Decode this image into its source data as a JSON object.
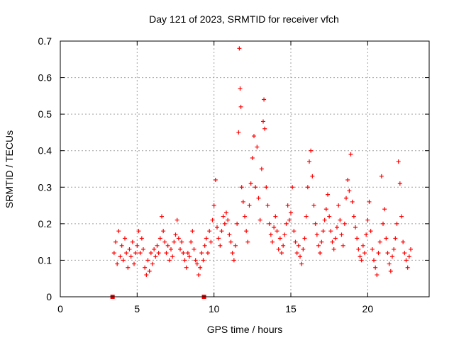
{
  "chart_data": {
    "type": "scatter",
    "title": "Day 121 of 2023, SRMTID for receiver vfch",
    "xlabel": "GPS time / hours",
    "ylabel": "SRMTID / TECUs",
    "xlim": [
      0,
      24
    ],
    "ylim": [
      0,
      0.7
    ],
    "x_ticks": [
      0,
      5,
      10,
      15,
      20
    ],
    "x_tick_labels": [
      "0",
      "5",
      "10",
      "15",
      "20"
    ],
    "y_ticks": [
      0,
      0.1,
      0.2,
      0.3,
      0.4,
      0.5,
      0.6,
      0.7
    ],
    "y_tick_labels": [
      "0",
      "0.1",
      "0.2",
      "0.3",
      "0.4",
      "0.5",
      "0.6",
      "0.7"
    ],
    "grid": true,
    "marker": "plus",
    "color": "#ff0000",
    "series": [
      {
        "name": "SRMTID",
        "points": [
          [
            3.5,
            0.12
          ],
          [
            3.6,
            0.15
          ],
          [
            3.7,
            0.09
          ],
          [
            3.8,
            0.18
          ],
          [
            3.9,
            0.11
          ],
          [
            4.0,
            0.14
          ],
          [
            4.1,
            0.1
          ],
          [
            4.2,
            0.16
          ],
          [
            4.3,
            0.12
          ],
          [
            4.4,
            0.08
          ],
          [
            4.5,
            0.13
          ],
          [
            4.6,
            0.11
          ],
          [
            4.7,
            0.15
          ],
          [
            4.8,
            0.09
          ],
          [
            4.9,
            0.12
          ],
          [
            5.0,
            0.14
          ],
          [
            5.1,
            0.18
          ],
          [
            5.2,
            0.12
          ],
          [
            5.3,
            0.16
          ],
          [
            5.4,
            0.13
          ],
          [
            5.5,
            0.08
          ],
          [
            5.6,
            0.06
          ],
          [
            5.7,
            0.1
          ],
          [
            5.8,
            0.07
          ],
          [
            5.9,
            0.12
          ],
          [
            6.0,
            0.09
          ],
          [
            6.1,
            0.13
          ],
          [
            6.2,
            0.11
          ],
          [
            6.3,
            0.14
          ],
          [
            6.4,
            0.12
          ],
          [
            6.5,
            0.16
          ],
          [
            6.6,
            0.22
          ],
          [
            6.7,
            0.18
          ],
          [
            6.8,
            0.15
          ],
          [
            6.9,
            0.12
          ],
          [
            7.0,
            0.14
          ],
          [
            7.1,
            0.1
          ],
          [
            7.2,
            0.13
          ],
          [
            7.3,
            0.11
          ],
          [
            7.4,
            0.15
          ],
          [
            7.5,
            0.17
          ],
          [
            7.6,
            0.21
          ],
          [
            7.7,
            0.16
          ],
          [
            7.8,
            0.13
          ],
          [
            7.9,
            0.15
          ],
          [
            8.0,
            0.12
          ],
          [
            8.1,
            0.1
          ],
          [
            8.2,
            0.08
          ],
          [
            8.3,
            0.12
          ],
          [
            8.4,
            0.11
          ],
          [
            8.5,
            0.15
          ],
          [
            8.6,
            0.18
          ],
          [
            8.7,
            0.13
          ],
          [
            8.8,
            0.1
          ],
          [
            8.9,
            0.09
          ],
          [
            9.0,
            0.06
          ],
          [
            9.1,
            0.08
          ],
          [
            9.2,
            0.12
          ],
          [
            9.3,
            0.1
          ],
          [
            9.4,
            0.14
          ],
          [
            9.5,
            0.16
          ],
          [
            9.6,
            0.12
          ],
          [
            9.7,
            0.18
          ],
          [
            9.8,
            0.15
          ],
          [
            9.9,
            0.21
          ],
          [
            10.0,
            0.25
          ],
          [
            10.1,
            0.32
          ],
          [
            10.2,
            0.19
          ],
          [
            10.3,
            0.16
          ],
          [
            10.4,
            0.14
          ],
          [
            10.5,
            0.18
          ],
          [
            10.6,
            0.22
          ],
          [
            10.7,
            0.2
          ],
          [
            10.8,
            0.23
          ],
          [
            10.9,
            0.21
          ],
          [
            11.0,
            0.17
          ],
          [
            11.1,
            0.15
          ],
          [
            11.2,
            0.12
          ],
          [
            11.3,
            0.1
          ],
          [
            11.4,
            0.14
          ],
          [
            11.5,
            0.2
          ],
          [
            11.6,
            0.45
          ],
          [
            11.65,
            0.68
          ],
          [
            11.7,
            0.57
          ],
          [
            11.75,
            0.52
          ],
          [
            11.8,
            0.3
          ],
          [
            11.9,
            0.26
          ],
          [
            12.0,
            0.22
          ],
          [
            12.1,
            0.18
          ],
          [
            12.2,
            0.15
          ],
          [
            12.3,
            0.25
          ],
          [
            12.4,
            0.31
          ],
          [
            12.5,
            0.38
          ],
          [
            12.6,
            0.44
          ],
          [
            12.7,
            0.3
          ],
          [
            12.8,
            0.41
          ],
          [
            12.9,
            0.27
          ],
          [
            13.0,
            0.21
          ],
          [
            13.1,
            0.35
          ],
          [
            13.2,
            0.48
          ],
          [
            13.25,
            0.54
          ],
          [
            13.3,
            0.46
          ],
          [
            13.4,
            0.3
          ],
          [
            13.5,
            0.25
          ],
          [
            13.6,
            0.2
          ],
          [
            13.7,
            0.17
          ],
          [
            13.8,
            0.15
          ],
          [
            13.9,
            0.19
          ],
          [
            14.0,
            0.22
          ],
          [
            14.1,
            0.18
          ],
          [
            14.2,
            0.13
          ],
          [
            14.3,
            0.16
          ],
          [
            14.4,
            0.12
          ],
          [
            14.5,
            0.14
          ],
          [
            14.6,
            0.17
          ],
          [
            14.7,
            0.2
          ],
          [
            14.8,
            0.25
          ],
          [
            14.9,
            0.21
          ],
          [
            15.0,
            0.23
          ],
          [
            15.1,
            0.3
          ],
          [
            15.2,
            0.18
          ],
          [
            15.3,
            0.15
          ],
          [
            15.4,
            0.12
          ],
          [
            15.5,
            0.14
          ],
          [
            15.6,
            0.11
          ],
          [
            15.7,
            0.09
          ],
          [
            15.8,
            0.13
          ],
          [
            15.9,
            0.16
          ],
          [
            16.0,
            0.22
          ],
          [
            16.1,
            0.3
          ],
          [
            16.2,
            0.37
          ],
          [
            16.3,
            0.4
          ],
          [
            16.4,
            0.33
          ],
          [
            16.5,
            0.25
          ],
          [
            16.6,
            0.2
          ],
          [
            16.7,
            0.17
          ],
          [
            16.8,
            0.14
          ],
          [
            16.9,
            0.12
          ],
          [
            17.0,
            0.15
          ],
          [
            17.1,
            0.18
          ],
          [
            17.2,
            0.21
          ],
          [
            17.3,
            0.24
          ],
          [
            17.4,
            0.28
          ],
          [
            17.5,
            0.22
          ],
          [
            17.6,
            0.18
          ],
          [
            17.7,
            0.15
          ],
          [
            17.8,
            0.13
          ],
          [
            17.9,
            0.16
          ],
          [
            18.0,
            0.19
          ],
          [
            18.1,
            0.25
          ],
          [
            18.2,
            0.21
          ],
          [
            18.3,
            0.17
          ],
          [
            18.4,
            0.14
          ],
          [
            18.5,
            0.2
          ],
          [
            18.6,
            0.27
          ],
          [
            18.7,
            0.32
          ],
          [
            18.8,
            0.29
          ],
          [
            18.9,
            0.39
          ],
          [
            19.0,
            0.26
          ],
          [
            19.1,
            0.22
          ],
          [
            19.2,
            0.19
          ],
          [
            19.3,
            0.16
          ],
          [
            19.4,
            0.13
          ],
          [
            19.5,
            0.11
          ],
          [
            19.6,
            0.1
          ],
          [
            19.7,
            0.14
          ],
          [
            19.8,
            0.12
          ],
          [
            19.9,
            0.17
          ],
          [
            20.0,
            0.21
          ],
          [
            20.1,
            0.26
          ],
          [
            20.2,
            0.18
          ],
          [
            20.3,
            0.13
          ],
          [
            20.4,
            0.1
          ],
          [
            20.5,
            0.08
          ],
          [
            20.6,
            0.06
          ],
          [
            20.7,
            0.12
          ],
          [
            20.8,
            0.15
          ],
          [
            20.9,
            0.33
          ],
          [
            21.0,
            0.2
          ],
          [
            21.1,
            0.24
          ],
          [
            21.2,
            0.16
          ],
          [
            21.3,
            0.12
          ],
          [
            21.4,
            0.09
          ],
          [
            21.5,
            0.07
          ],
          [
            21.6,
            0.11
          ],
          [
            21.7,
            0.13
          ],
          [
            21.8,
            0.16
          ],
          [
            21.9,
            0.2
          ],
          [
            22.0,
            0.37
          ],
          [
            22.1,
            0.31
          ],
          [
            22.2,
            0.22
          ],
          [
            22.3,
            0.15
          ],
          [
            22.4,
            0.12
          ],
          [
            22.5,
            0.1
          ],
          [
            22.6,
            0.08
          ],
          [
            22.7,
            0.11
          ],
          [
            22.8,
            0.13
          ]
        ]
      }
    ],
    "baseline_markers": [
      3.4,
      9.35
    ]
  }
}
